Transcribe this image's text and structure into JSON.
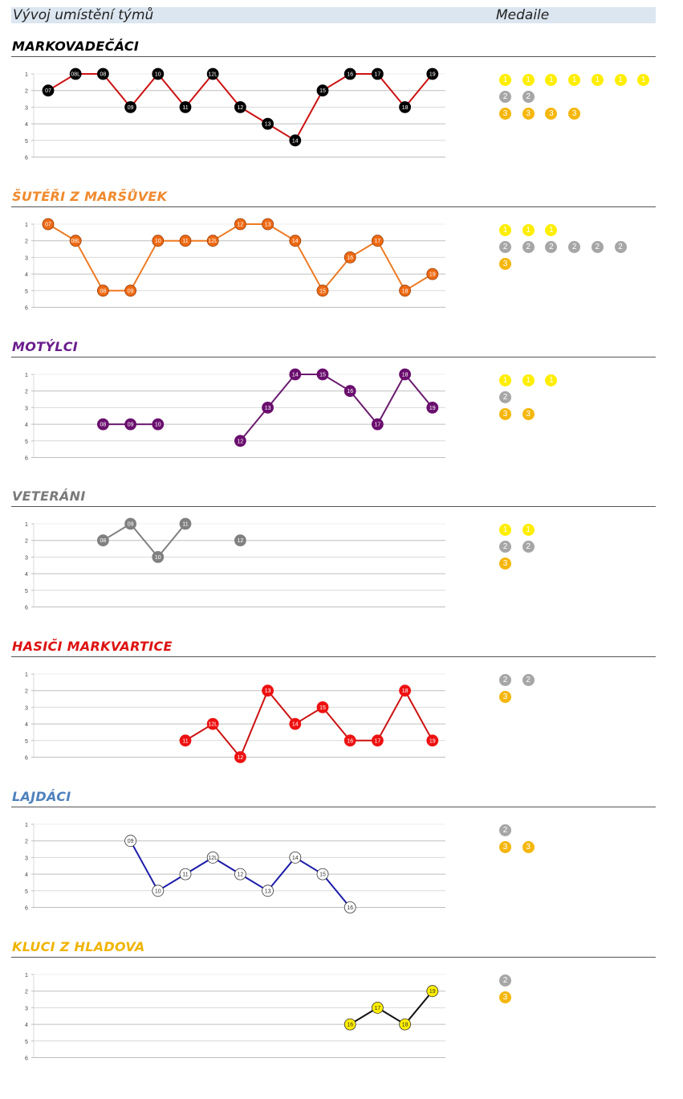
{
  "header": {
    "title": "Vývoj umístění týmů",
    "medals_title": "Medaile"
  },
  "medal_colors": {
    "gold": "#ffee00",
    "silver": "#a6a6a6",
    "bronze": "#f5b70e"
  },
  "chart_data": [
    {
      "type": "line",
      "title": "MARKOVADEČÁCI",
      "title_color": "#000000",
      "line_color": "#cc1111",
      "marker_fill": "#000000",
      "marker_text": "#ffffff",
      "marker_stroke": "#000000",
      "x": [
        "07",
        "08L",
        "08",
        "09",
        "10",
        "11",
        "12L",
        "12",
        "13",
        "14",
        "15",
        "16",
        "17",
        "18",
        "19"
      ],
      "values": [
        2,
        1,
        1,
        3,
        1,
        3,
        1,
        3,
        4,
        5,
        2,
        1,
        1,
        3,
        1
      ],
      "yticks": [
        "1",
        "2",
        "3",
        "4",
        "5",
        "6"
      ],
      "ylim": [
        1,
        6
      ],
      "y_inverted": true,
      "grid": true,
      "medals": {
        "gold": 7,
        "silver": 2,
        "bronze": 4
      }
    },
    {
      "type": "line",
      "title": "ŠUTÉŘI Z MARŠŮVEK",
      "title_color": "#f08a2e",
      "line_color": "#ee7a22",
      "marker_fill": "#ee6a14",
      "marker_text": "#ffffff",
      "marker_stroke": "#9a3a00",
      "x": [
        "07",
        "08L",
        "08",
        "09",
        "10",
        "11",
        "12L",
        "12",
        "13",
        "14",
        "15",
        "16",
        "17",
        "18",
        "19"
      ],
      "values": [
        1,
        2,
        5,
        5,
        2,
        2,
        2,
        1,
        1,
        2,
        5,
        3,
        2,
        5,
        4
      ],
      "yticks": [
        "1",
        "2",
        "3",
        "4",
        "5",
        "6"
      ],
      "ylim": [
        1,
        6
      ],
      "y_inverted": true,
      "grid": true,
      "medals": {
        "gold": 3,
        "silver": 6,
        "bronze": 1
      }
    },
    {
      "type": "line",
      "title": "MOTÝLCI",
      "title_color": "#6a1d8c",
      "line_color": "#6a1a6e",
      "marker_fill": "#6a0f6e",
      "marker_text": "#ffffff",
      "marker_stroke": "#6a0f6e",
      "x": [
        "07",
        "08L",
        "08",
        "09",
        "10",
        "11",
        "12L",
        "12",
        "13",
        "14",
        "15",
        "16",
        "17",
        "18",
        "19"
      ],
      "values": [
        null,
        null,
        4,
        4,
        4,
        null,
        null,
        5,
        3,
        1,
        1,
        2,
        4,
        1,
        3
      ],
      "yticks": [
        "1",
        "2",
        "3",
        "4",
        "5",
        "6"
      ],
      "ylim": [
        1,
        6
      ],
      "y_inverted": true,
      "grid": true,
      "medals": {
        "gold": 3,
        "silver": 1,
        "bronze": 2
      }
    },
    {
      "type": "line",
      "title": "VETERÁNI",
      "title_color": "#7a7a7a",
      "line_color": "#808080",
      "marker_fill": "#808080",
      "marker_text": "#ffffff",
      "marker_stroke": "#808080",
      "x": [
        "07",
        "08L",
        "08",
        "09",
        "10",
        "11",
        "12L",
        "12",
        "13",
        "14",
        "15",
        "16",
        "17",
        "18",
        "19"
      ],
      "values": [
        null,
        null,
        2,
        1,
        3,
        1,
        null,
        2,
        null,
        null,
        null,
        null,
        null,
        null,
        null
      ],
      "yticks": [
        "1",
        "2",
        "3",
        "4",
        "5",
        "6"
      ],
      "ylim": [
        1,
        6
      ],
      "y_inverted": true,
      "grid": true,
      "medals": {
        "gold": 2,
        "silver": 2,
        "bronze": 1
      }
    },
    {
      "type": "line",
      "title": "HASIČI MARKVARTICE",
      "title_color": "#dd1111",
      "line_color": "#cc1111",
      "marker_fill": "#ee1111",
      "marker_text": "#ffffff",
      "marker_stroke": "#ee1111",
      "x": [
        "07",
        "08L",
        "08",
        "09",
        "10",
        "11",
        "12L",
        "12",
        "13",
        "14",
        "15",
        "16",
        "17",
        "18",
        "19"
      ],
      "values": [
        null,
        null,
        null,
        null,
        null,
        5,
        4,
        6,
        2,
        4,
        3,
        5,
        5,
        2,
        5
      ],
      "yticks": [
        "1",
        "2",
        "3",
        "4",
        "5",
        "6"
      ],
      "ylim": [
        1,
        6
      ],
      "y_inverted": true,
      "grid": true,
      "medals": {
        "gold": 0,
        "silver": 2,
        "bronze": 1
      }
    },
    {
      "type": "line",
      "title": "LAJDÁCI",
      "title_color": "#4f81bd",
      "line_color": "#1a1aaa",
      "marker_fill": "#ffffff",
      "marker_text": "#333333",
      "marker_stroke": "#333333",
      "x": [
        "07",
        "08L",
        "08",
        "09",
        "10",
        "11",
        "12L",
        "12",
        "13",
        "14",
        "15",
        "16",
        "17",
        "18",
        "19"
      ],
      "values": [
        null,
        null,
        null,
        2,
        5,
        4,
        3,
        4,
        5,
        3,
        4,
        6,
        null,
        null,
        null
      ],
      "yticks": [
        "1",
        "2",
        "3",
        "4",
        "5",
        "6"
      ],
      "ylim": [
        1,
        6
      ],
      "y_inverted": true,
      "grid": true,
      "medals": {
        "gold": 0,
        "silver": 1,
        "bronze": 2
      }
    },
    {
      "type": "line",
      "title": "KLUCI Z HLADOVA",
      "title_color": "#f0b400",
      "line_color": "#111111",
      "marker_fill": "#ffee00",
      "marker_text": "#333333",
      "marker_stroke": "#333333",
      "x": [
        "07",
        "08L",
        "08",
        "09",
        "10",
        "11",
        "12L",
        "12",
        "13",
        "14",
        "15",
        "16",
        "17",
        "18",
        "19"
      ],
      "values": [
        null,
        null,
        null,
        null,
        null,
        null,
        null,
        null,
        null,
        null,
        null,
        4,
        3,
        4,
        2
      ],
      "yticks": [
        "1",
        "2",
        "3",
        "4",
        "5",
        "6"
      ],
      "ylim": [
        1,
        6
      ],
      "y_inverted": true,
      "grid": true,
      "medals": {
        "gold": 0,
        "silver": 1,
        "bronze": 1
      }
    }
  ]
}
